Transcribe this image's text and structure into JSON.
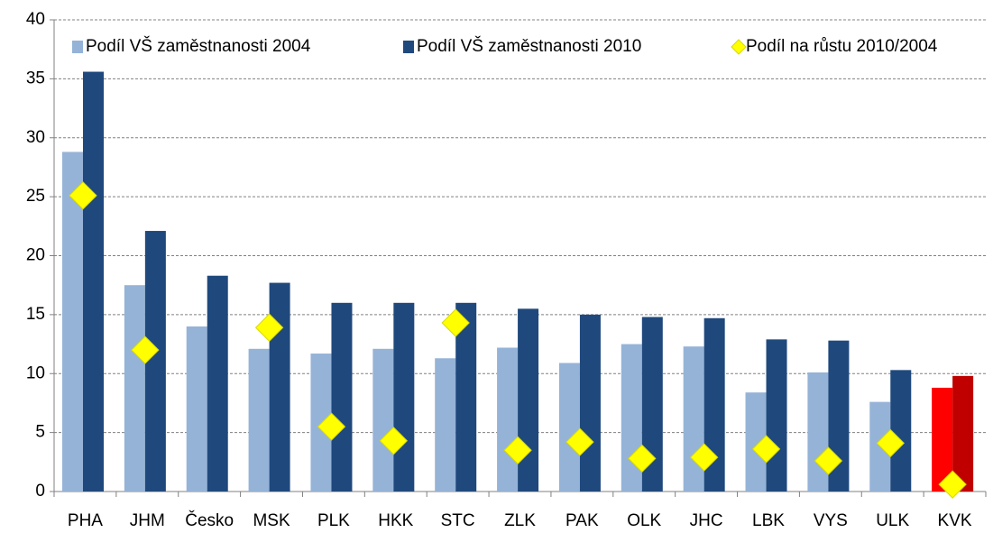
{
  "chart_data": {
    "type": "bar",
    "categories": [
      "PHA",
      "JHM",
      "Česko",
      "MSK",
      "PLK",
      "HKK",
      "STC",
      "ZLK",
      "PAK",
      "OLK",
      "JHC",
      "LBK",
      "VYS",
      "ULK",
      "KVK"
    ],
    "series": [
      {
        "name": "Podíl VŠ zaměstnanosti 2004",
        "type": "bar",
        "color": "#95b3d7",
        "colors": [
          "#95b3d7",
          "#95b3d7",
          "#95b3d7",
          "#95b3d7",
          "#95b3d7",
          "#95b3d7",
          "#95b3d7",
          "#95b3d7",
          "#95b3d7",
          "#95b3d7",
          "#95b3d7",
          "#95b3d7",
          "#95b3d7",
          "#95b3d7",
          "#ff0000"
        ],
        "values": [
          28.8,
          17.5,
          14.0,
          12.1,
          11.7,
          12.1,
          11.3,
          12.2,
          10.9,
          12.5,
          12.3,
          8.4,
          10.1,
          7.6,
          8.8
        ]
      },
      {
        "name": "Podíl VŠ zaměstnanosti 2010",
        "type": "bar",
        "color": "#1f497d",
        "colors": [
          "#1f497d",
          "#1f497d",
          "#1f497d",
          "#1f497d",
          "#1f497d",
          "#1f497d",
          "#1f497d",
          "#1f497d",
          "#1f497d",
          "#1f497d",
          "#1f497d",
          "#1f497d",
          "#1f497d",
          "#1f497d",
          "#c00000"
        ],
        "values": [
          35.6,
          22.1,
          18.3,
          17.7,
          16.0,
          16.0,
          16.0,
          15.5,
          15.0,
          14.8,
          14.7,
          12.9,
          12.8,
          10.3,
          9.8
        ]
      },
      {
        "name": "Podíl na růstu 2010/2004",
        "type": "diamond",
        "color": "#ffff00",
        "values": [
          25.1,
          12.0,
          null,
          13.9,
          5.5,
          4.3,
          14.3,
          3.5,
          4.2,
          2.8,
          2.9,
          3.6,
          2.6,
          4.1,
          0.6
        ]
      }
    ],
    "ylim": [
      0,
      40
    ],
    "yticks": [
      0,
      5,
      10,
      15,
      20,
      25,
      30,
      35,
      40
    ],
    "grid": true
  }
}
